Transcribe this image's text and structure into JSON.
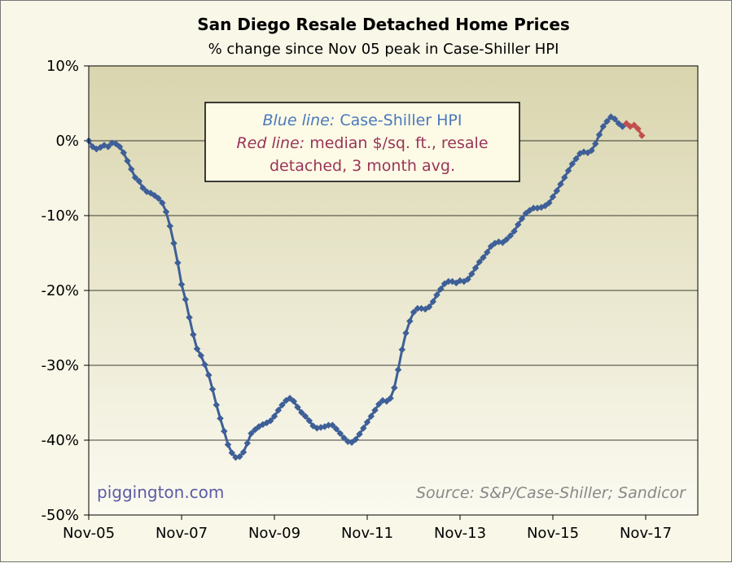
{
  "chart_data": {
    "type": "line",
    "title": "San Diego Resale Detached Home Prices",
    "subtitle": "% change since Nov 05 peak in Case-Shiller HPI",
    "ylim": [
      -50,
      10
    ],
    "y_ticks": [
      "10%",
      "0%",
      "-10%",
      "-20%",
      "-30%",
      "-40%",
      "-50%"
    ],
    "x_ticks": [
      "Nov-05",
      "Nov-07",
      "Nov-09",
      "Nov-11",
      "Nov-13",
      "Nov-15",
      "Nov-17"
    ],
    "grid": "horizontal",
    "annotation": {
      "line1_label": "Blue line:",
      "line1_text": "Case-Shiller HPI",
      "line2_label": "Red line:",
      "line2_text": "median $/sq. ft., resale",
      "line3_text": "detached, 3 month avg."
    },
    "credit": "piggington.com",
    "source": "Source: S&P/Case-Shiller; Sandicor",
    "colors": {
      "blue": "#3e5f97",
      "red": "#c0504d",
      "plot_bg_top": "#d9d5ae",
      "plot_bg_bottom": "#fbfaf0",
      "annotation_blue": "#4a78bd",
      "annotation_red": "#9a3458"
    },
    "series": [
      {
        "x_start": "Nov-05",
        "interval": "monthly",
        "values": [
          0,
          -0.8,
          -1.1,
          -0.9,
          -0.6,
          -0.8,
          -0.3,
          -0.4,
          -0.8,
          -1.6,
          -2.7,
          -3.8,
          -4.9,
          -5.4,
          -6.3,
          -6.8,
          -7.0,
          -7.3,
          -7.7,
          -8.3,
          -9.5,
          -11.4,
          -13.7,
          -16.3,
          -19.2,
          -21.2,
          -23.6,
          -25.9,
          -27.8,
          -28.7,
          -29.9,
          -31.3,
          -33.2,
          -35.3,
          -37.1,
          -38.8,
          -40.6,
          -41.7,
          -42.3,
          -42.2,
          -41.6,
          -40.4,
          -39.1,
          -38.6,
          -38.2,
          -37.9,
          -37.7,
          -37.4,
          -36.8,
          -36.0,
          -35.3,
          -34.7,
          -34.4,
          -34.8,
          -35.6,
          -36.3,
          -36.8,
          -37.4,
          -38.1,
          -38.4,
          -38.3,
          -38.2,
          -38.0,
          -38.0,
          -38.5,
          -39.1,
          -39.7,
          -40.2,
          -40.3,
          -39.9,
          -39.2,
          -38.4,
          -37.6,
          -36.8,
          -36.0,
          -35.2,
          -34.7,
          -34.8,
          -34.4,
          -33.0,
          -30.6,
          -27.9,
          -25.7,
          -24.1,
          -22.9,
          -22.4,
          -22.4,
          -22.5,
          -22.2,
          -21.5,
          -20.6,
          -19.8,
          -19.1,
          -18.8,
          -18.8,
          -19.0,
          -18.7,
          -18.8,
          -18.5,
          -17.8,
          -17.0,
          -16.2,
          -15.6,
          -14.9,
          -14.1,
          -13.7,
          -13.5,
          -13.6,
          -13.2,
          -12.7,
          -12.1,
          -11.2,
          -10.4,
          -9.7,
          -9.3,
          -9.0,
          -9.0,
          -8.9,
          -8.7,
          -8.3,
          -7.5,
          -6.7,
          -5.8,
          -4.9,
          -4.0,
          -3.1,
          -2.4,
          -1.7,
          -1.5,
          -1.6,
          -1.3,
          -0.4,
          0.8,
          1.9,
          2.6,
          3.2,
          2.9,
          2.3,
          1.9
        ],
        "color": "#3e5f97"
      },
      {
        "x_start": "Jun-17",
        "interval": "monthly",
        "values": [
          2.3,
          1.9,
          2.1,
          1.6,
          0.7
        ],
        "color": "#c0504d",
        "x_offset_months": 139
      }
    ]
  }
}
